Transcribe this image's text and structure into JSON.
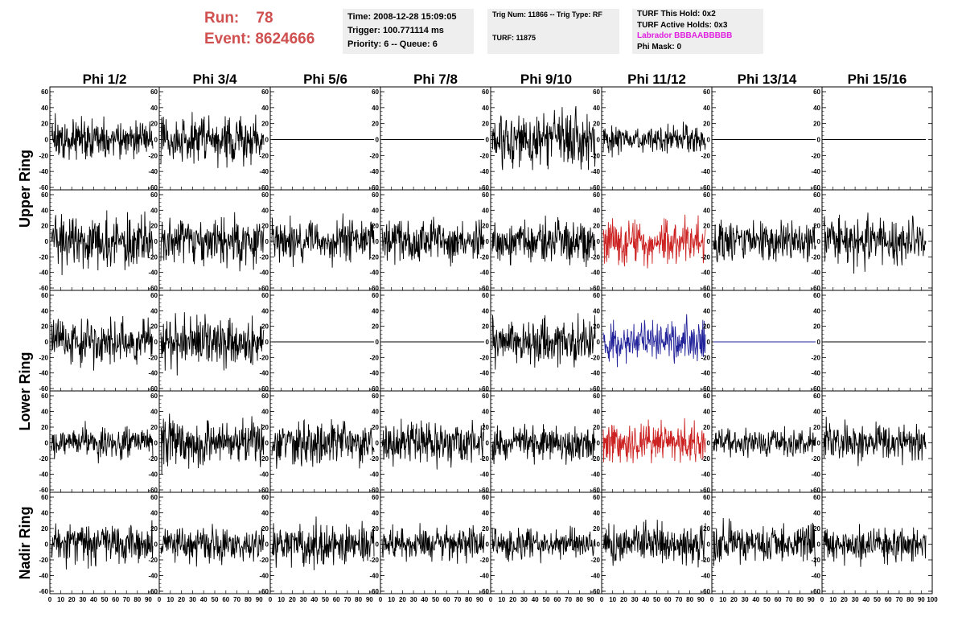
{
  "header": {
    "run_label": "Run:    78",
    "event_label": "Event: 8624666",
    "time_box": {
      "time": "Time: 2008-12-28 15:09:05",
      "trigger": "Trigger: 100.771114 ms",
      "priority": "Priority: 6 -- Queue: 6"
    },
    "trig_box": {
      "trig_num": "Trig Num: 11866 -- Trig Type: RF",
      "turf": "TURF: 11875"
    },
    "turf_box": {
      "this_hold": "TURF This Hold: 0x2",
      "active_holds": "TURF Active Holds: 0x3",
      "labrador": "Labrador BBBAABBBBB",
      "phi_mask": "Phi Mask: 0"
    }
  },
  "chart_data": {
    "type": "line",
    "columns": [
      "Phi 1/2",
      "Phi 3/4",
      "Phi 5/6",
      "Phi 7/8",
      "Phi 9/10",
      "Phi 11/12",
      "Phi 13/14",
      "Phi 15/16"
    ],
    "row_labels": [
      "Upper Ring",
      "Lower Ring",
      "Nadir Ring"
    ],
    "row_label_spans": [
      [
        0,
        1
      ],
      [
        2,
        3
      ],
      [
        4,
        4
      ]
    ],
    "xlim": [
      0,
      100
    ],
    "ylim": [
      -60,
      60
    ],
    "y_ticks": [
      -60,
      -40,
      -20,
      0,
      20,
      40,
      60
    ],
    "x_ticks": [
      0,
      10,
      20,
      30,
      40,
      50,
      60,
      70,
      80,
      90,
      100
    ],
    "x_tick_labels": [
      "0",
      "10",
      "20",
      "30",
      "40",
      "50",
      "60",
      "70",
      "80",
      "90",
      "100"
    ],
    "normal_color": "#000000",
    "highlight_red": "#cc2222",
    "highlight_blue": "#22229a",
    "panels": [
      [
        {
          "a": 12,
          "s": 1
        },
        {
          "a": 14,
          "s": 2
        },
        {
          "a": 0,
          "s": 3
        },
        {
          "a": 0,
          "s": 4
        },
        {
          "a": 16,
          "s": 5
        },
        {
          "a": 8,
          "s": 6
        },
        {
          "a": 0,
          "s": 7
        },
        {
          "a": 0,
          "s": 8
        }
      ],
      [
        {
          "a": 16,
          "s": 9
        },
        {
          "a": 14,
          "s": 10
        },
        {
          "a": 12,
          "s": 11
        },
        {
          "a": 12,
          "s": 12
        },
        {
          "a": 12,
          "s": 13
        },
        {
          "a": 14,
          "s": 14,
          "c": "red"
        },
        {
          "a": 12,
          "s": 15
        },
        {
          "a": 14,
          "s": 16
        }
      ],
      [
        {
          "a": 14,
          "s": 17
        },
        {
          "a": 16,
          "s": 18
        },
        {
          "a": 0,
          "s": 19
        },
        {
          "a": 0,
          "s": 20
        },
        {
          "a": 14,
          "s": 21
        },
        {
          "a": 12,
          "s": 22,
          "c": "blue"
        },
        {
          "a": 0,
          "s": 23,
          "c": "blue"
        },
        {
          "a": 0,
          "s": 24
        }
      ],
      [
        {
          "a": 10,
          "s": 25
        },
        {
          "a": 14,
          "s": 26
        },
        {
          "a": 12,
          "s": 27
        },
        {
          "a": 12,
          "s": 28
        },
        {
          "a": 10,
          "s": 29
        },
        {
          "a": 12,
          "s": 30,
          "c": "red"
        },
        {
          "a": 8,
          "s": 31
        },
        {
          "a": 12,
          "s": 32
        }
      ],
      [
        {
          "a": 12,
          "s": 33
        },
        {
          "a": 10,
          "s": 34
        },
        {
          "a": 12,
          "s": 35
        },
        {
          "a": 10,
          "s": 36
        },
        {
          "a": 9,
          "s": 37
        },
        {
          "a": 12,
          "s": 38
        },
        {
          "a": 12,
          "s": 39
        },
        {
          "a": 10,
          "s": 40
        }
      ]
    ]
  }
}
